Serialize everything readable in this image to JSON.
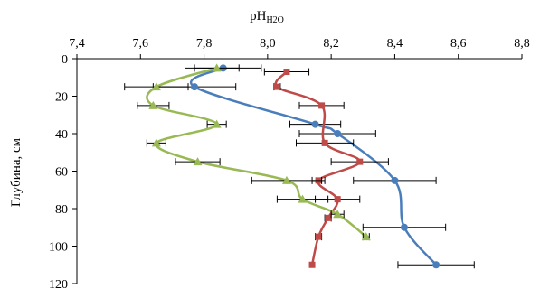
{
  "chart_data": {
    "type": "line",
    "xlabel": "pH",
    "xlabel_sub": "H2O",
    "ylabel": "Глубина, см",
    "xlim": [
      7.4,
      8.8
    ],
    "ylim": [
      0,
      120
    ],
    "y_reversed": true,
    "x_axis_position": "top",
    "x_ticks": [
      "7,4",
      "7,6",
      "7,8",
      "8,0",
      "8,2",
      "8,4",
      "8,6",
      "8,8"
    ],
    "y_ticks": [
      "0",
      "20",
      "40",
      "60",
      "80",
      "100",
      "120"
    ],
    "grid": false,
    "legend": "none",
    "series": [
      {
        "color": "#4a7ebb",
        "marker": "circle",
        "points": [
          {
            "x": 7.86,
            "y": 5,
            "err": 0.12
          },
          {
            "x": 7.77,
            "y": 15,
            "err": 0.13
          },
          {
            "x": 8.15,
            "y": 35,
            "err": 0.08
          },
          {
            "x": 8.22,
            "y": 40,
            "err": 0.12
          },
          {
            "x": 8.4,
            "y": 65,
            "err": 0.13
          },
          {
            "x": 8.43,
            "y": 90,
            "err": 0.13
          },
          {
            "x": 8.53,
            "y": 110,
            "err": 0.12
          }
        ]
      },
      {
        "color": "#be4b48",
        "marker": "square",
        "points": [
          {
            "x": 8.06,
            "y": 7,
            "err": 0.07
          },
          {
            "x": 8.03,
            "y": 15,
            "err": 0.01
          },
          {
            "x": 8.17,
            "y": 25,
            "err": 0.07
          },
          {
            "x": 8.18,
            "y": 45,
            "err": 0.09
          },
          {
            "x": 8.29,
            "y": 55,
            "err": 0.09
          },
          {
            "x": 8.16,
            "y": 65,
            "err": 0.02
          },
          {
            "x": 8.22,
            "y": 75,
            "err": 0.07
          },
          {
            "x": 8.19,
            "y": 85,
            "err": 0.01
          },
          {
            "x": 8.16,
            "y": 95,
            "err": 0.01
          },
          {
            "x": 8.14,
            "y": 110,
            "err": 0.0
          }
        ]
      },
      {
        "color": "#98b954",
        "marker": "triangle",
        "points": [
          {
            "x": 7.84,
            "y": 5,
            "err": 0.07
          },
          {
            "x": 7.65,
            "y": 15,
            "err": 0.1
          },
          {
            "x": 7.64,
            "y": 25,
            "err": 0.05
          },
          {
            "x": 7.84,
            "y": 35,
            "err": 0.03
          },
          {
            "x": 7.65,
            "y": 45,
            "err": 0.03
          },
          {
            "x": 7.78,
            "y": 55,
            "err": 0.07
          },
          {
            "x": 8.06,
            "y": 65,
            "err": 0.11
          },
          {
            "x": 8.11,
            "y": 75,
            "err": 0.08
          },
          {
            "x": 8.22,
            "y": 83,
            "err": 0.02
          },
          {
            "x": 8.31,
            "y": 95,
            "err": 0.01
          }
        ]
      }
    ]
  }
}
